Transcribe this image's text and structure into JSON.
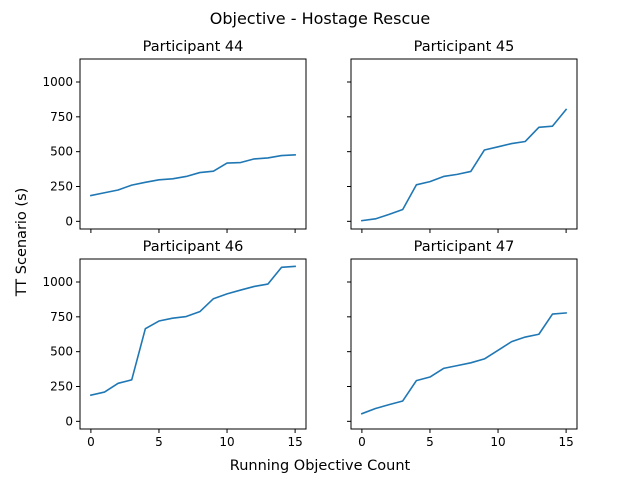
{
  "chart_data": {
    "type": "line",
    "title": "Objective - Hostage Rescue",
    "xlabel": "Running Objective Count",
    "ylabel": "TT Scenario (s)",
    "xlim": [
      -0.8,
      15.8
    ],
    "ylim": [
      -55,
      1165
    ],
    "xticks": [
      0,
      5,
      10,
      15
    ],
    "yticks": [
      0,
      250,
      500,
      750,
      1000
    ],
    "sharex": true,
    "sharey": true,
    "grid": false,
    "line_color": "#1f77b4",
    "panels": [
      {
        "title": "Participant 44",
        "x": [
          0,
          1,
          2,
          3,
          4,
          5,
          6,
          7,
          8,
          9,
          10,
          11,
          12,
          13,
          14,
          15
        ],
        "y": [
          185,
          205,
          225,
          260,
          280,
          298,
          305,
          322,
          350,
          360,
          418,
          422,
          448,
          455,
          472,
          477
        ]
      },
      {
        "title": "Participant 45",
        "x": [
          0,
          1,
          2,
          3,
          4,
          5,
          6,
          7,
          8,
          9,
          10,
          11,
          12,
          13,
          14,
          15
        ],
        "y": [
          5,
          18,
          50,
          85,
          262,
          285,
          322,
          337,
          358,
          512,
          535,
          558,
          573,
          675,
          683,
          803
        ]
      },
      {
        "title": "Participant 46",
        "x": [
          0,
          1,
          2,
          3,
          4,
          5,
          6,
          7,
          8,
          9,
          10,
          11,
          12,
          13,
          14,
          15
        ],
        "y": [
          188,
          210,
          273,
          298,
          665,
          720,
          740,
          752,
          787,
          880,
          915,
          942,
          968,
          985,
          1105,
          1112
        ]
      },
      {
        "title": "Participant 47",
        "x": [
          0,
          1,
          2,
          3,
          4,
          5,
          6,
          7,
          8,
          9,
          10,
          11,
          12,
          13,
          14,
          15
        ],
        "y": [
          55,
          92,
          120,
          146,
          292,
          318,
          380,
          400,
          420,
          448,
          510,
          572,
          605,
          625,
          770,
          778
        ]
      }
    ]
  }
}
